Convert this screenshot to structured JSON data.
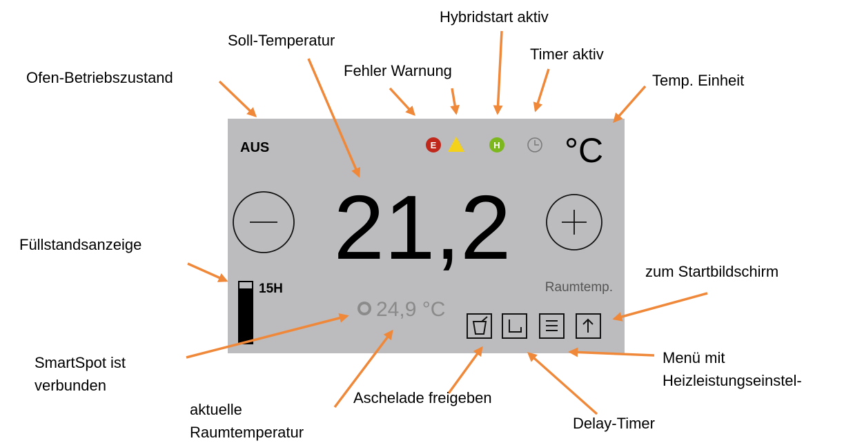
{
  "screen": {
    "state": "AUS",
    "unit": "°C",
    "error_icon": "E",
    "hybrid_icon": "H",
    "set_temperature": "21,2",
    "fill_level": "15H",
    "room_label": "Raumtemp.",
    "room_temperature": "24,9 °C"
  },
  "annotations": {
    "state": "Ofen-Betriebszustand",
    "set_temperature": "Soll-Temperatur",
    "error_warning": "Fehler Warnung",
    "hybrid": "Hybridstart aktiv",
    "timer": "Timer aktiv",
    "unit": "Temp. Einheit",
    "fill_level": "Füllstandsanzeige",
    "home": "zum Startbildschirm",
    "smartspot": [
      "SmartSpot ist",
      "verbunden"
    ],
    "room_temperature": [
      "aktuelle",
      "Raumtemperatur"
    ],
    "ash_drawer": "Aschelade freigeben",
    "menu": [
      "Menü mit",
      "Heizleistungseinstel-"
    ],
    "delay_timer": "Delay-Timer"
  }
}
